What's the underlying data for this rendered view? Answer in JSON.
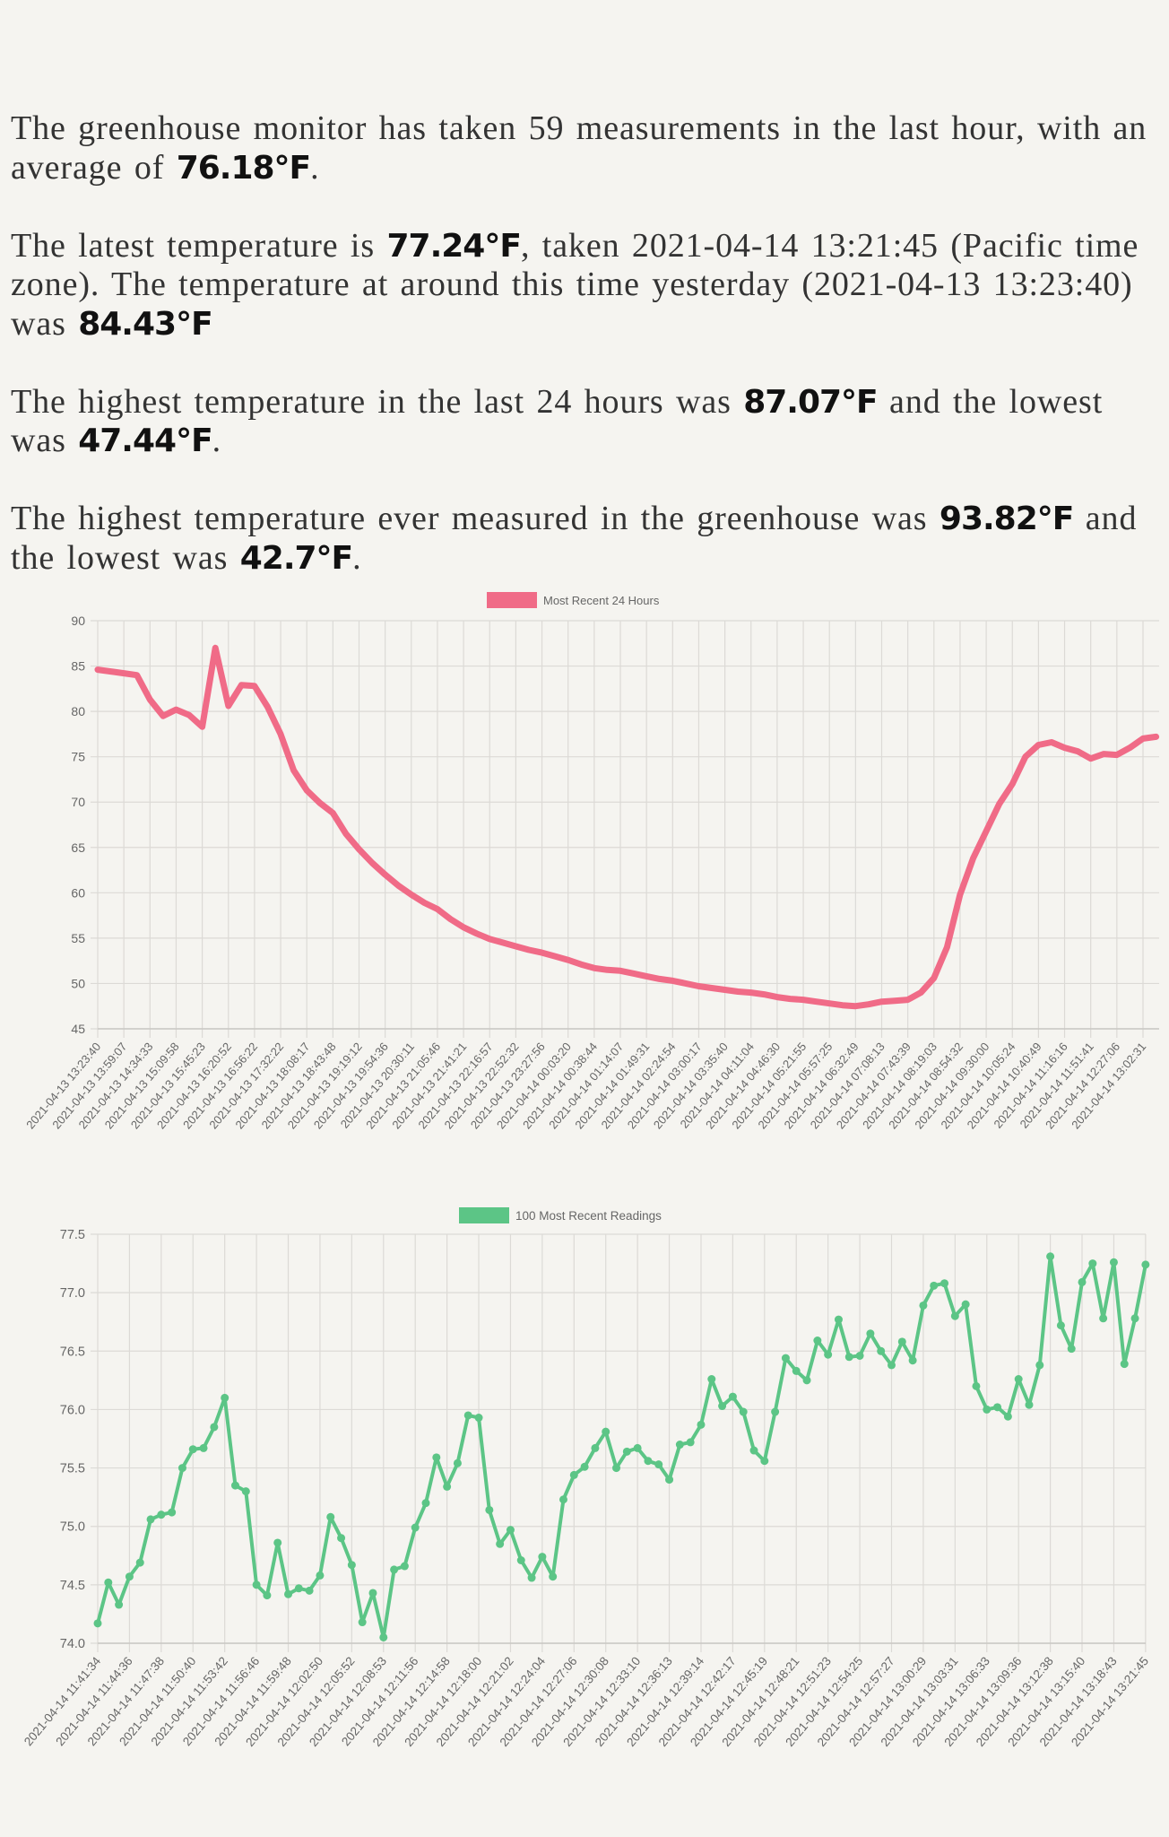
{
  "summary": {
    "p1": {
      "t1": "The greenhouse monitor has taken 59 measurements in the last hour, with an average of ",
      "avg": "76.18°F",
      "t2": "."
    },
    "p2": {
      "t1": "The latest temperature is ",
      "latest": "77.24°F",
      "t2": ", taken 2021-04-14 13:21:45 (Pacific time zone). The temperature at around this time yesterday (2021-04-13 13:23:40) was ",
      "yesterday": "84.43°F",
      "t3": ""
    },
    "p3": {
      "t1": "The highest temperature in the last 24 hours was ",
      "high": "87.07°F",
      "t2": " and the lowest was ",
      "low": "47.44°F",
      "t3": "."
    },
    "p4": {
      "t1": "The highest temperature ever measured in the greenhouse was ",
      "high": "93.82°F",
      "t2": " and the lowest was ",
      "low": "42.7°F",
      "t3": "."
    }
  },
  "chart_data": [
    {
      "type": "line",
      "series": [
        {
          "name": "Most Recent 24 Hours",
          "color": "#f06b87",
          "values": [
            84.6,
            84.4,
            84.2,
            84.0,
            81.3,
            79.5,
            80.2,
            79.6,
            78.3,
            87.0,
            80.6,
            82.9,
            82.8,
            80.5,
            77.5,
            73.5,
            71.3,
            69.9,
            68.8,
            66.5,
            64.8,
            63.3,
            62.0,
            60.8,
            59.8,
            58.9,
            58.2,
            57.1,
            56.2,
            55.5,
            54.9,
            54.5,
            54.1,
            53.7,
            53.4,
            53.0,
            52.6,
            52.1,
            51.7,
            51.5,
            51.4,
            51.1,
            50.8,
            50.5,
            50.3,
            50.0,
            49.7,
            49.5,
            49.3,
            49.1,
            49.0,
            48.8,
            48.5,
            48.3,
            48.2,
            48.0,
            47.8,
            47.6,
            47.5,
            47.7,
            48.0,
            48.1,
            48.2,
            49.0,
            50.6,
            54.0,
            59.8,
            63.8,
            66.8,
            69.8,
            72.0,
            75.0,
            76.3,
            76.6,
            76.0,
            75.6,
            74.8,
            75.3,
            75.2,
            76.0,
            77.0,
            77.2
          ]
        }
      ],
      "x_tick_labels": [
        "2021-04-13 13:23:40",
        "2021-04-13 13:59:07",
        "2021-04-13 14:34:33",
        "2021-04-13 15:09:58",
        "2021-04-13 15:45:23",
        "2021-04-13 16:20:52",
        "2021-04-13 16:56:22",
        "2021-04-13 17:32:22",
        "2021-04-13 18:08:17",
        "2021-04-13 18:43:48",
        "2021-04-13 19:19:12",
        "2021-04-13 19:54:36",
        "2021-04-13 20:30:11",
        "2021-04-13 21:05:46",
        "2021-04-13 21:41:21",
        "2021-04-13 22:16:57",
        "2021-04-13 22:52:32",
        "2021-04-13 23:27:56",
        "2021-04-14 00:03:20",
        "2021-04-14 00:38:44",
        "2021-04-14 01:14:07",
        "2021-04-14 01:49:31",
        "2021-04-14 02:24:54",
        "2021-04-14 03:00:17",
        "2021-04-14 03:35:40",
        "2021-04-14 04:11:04",
        "2021-04-14 04:46:30",
        "2021-04-14 05:21:55",
        "2021-04-14 05:57:25",
        "2021-04-14 06:32:49",
        "2021-04-14 07:08:13",
        "2021-04-14 07:43:39",
        "2021-04-14 08:19:03",
        "2021-04-14 08:54:32",
        "2021-04-14 09:30:00",
        "2021-04-14 10:05:24",
        "2021-04-14 10:40:49",
        "2021-04-14 11:16:16",
        "2021-04-14 11:51:41",
        "2021-04-14 12:27:06",
        "2021-04-14 13:02:31"
      ],
      "points_per_tick": 2,
      "ylim": [
        45,
        90
      ],
      "y_ticks": [
        "90",
        "85",
        "80",
        "75",
        "70",
        "65",
        "60",
        "55",
        "50",
        "45"
      ],
      "y_tick_values": [
        90,
        85,
        80,
        75,
        70,
        65,
        60,
        55,
        50,
        45
      ],
      "grid": true,
      "legend": "top",
      "markers": false
    },
    {
      "type": "line",
      "series": [
        {
          "name": "100 Most Recent Readings",
          "color": "#5cc586",
          "values": [
            74.17,
            74.52,
            74.33,
            74.57,
            74.69,
            75.06,
            75.1,
            75.12,
            75.5,
            75.66,
            75.67,
            75.85,
            76.1,
            75.35,
            75.3,
            74.5,
            74.41,
            74.86,
            74.42,
            74.47,
            74.45,
            74.58,
            75.08,
            74.9,
            74.67,
            74.18,
            74.43,
            74.05,
            74.63,
            74.66,
            74.99,
            75.2,
            75.59,
            75.34,
            75.54,
            75.95,
            75.93,
            75.14,
            74.85,
            74.97,
            74.71,
            74.56,
            74.74,
            74.57,
            75.23,
            75.44,
            75.51,
            75.67,
            75.81,
            75.5,
            75.64,
            75.67,
            75.56,
            75.53,
            75.4,
            75.7,
            75.72,
            75.87,
            76.26,
            76.03,
            76.11,
            75.98,
            75.65,
            75.56,
            75.98,
            76.44,
            76.33,
            76.25,
            76.59,
            76.47,
            76.77,
            76.45,
            76.46,
            76.65,
            76.5,
            76.38,
            76.58,
            76.42,
            76.89,
            77.06,
            77.08,
            76.8,
            76.9,
            76.2,
            76.0,
            76.02,
            75.94,
            76.26,
            76.04,
            76.38,
            77.31,
            76.72,
            76.52,
            77.09,
            77.25,
            76.78,
            77.26,
            76.39,
            76.78,
            77.24
          ]
        }
      ],
      "x_tick_labels": [
        "2021-04-14 11:41:34",
        "2021-04-14 11:44:36",
        "2021-04-14 11:47:38",
        "2021-04-14 11:50:40",
        "2021-04-14 11:53:42",
        "2021-04-14 11:56:46",
        "2021-04-14 11:59:48",
        "2021-04-14 12:02:50",
        "2021-04-14 12:05:52",
        "2021-04-14 12:08:53",
        "2021-04-14 12:11:56",
        "2021-04-14 12:14:58",
        "2021-04-14 12:18:00",
        "2021-04-14 12:21:02",
        "2021-04-14 12:24:04",
        "2021-04-14 12:27:06",
        "2021-04-14 12:30:08",
        "2021-04-14 12:33:10",
        "2021-04-14 12:36:13",
        "2021-04-14 12:39:14",
        "2021-04-14 12:42:17",
        "2021-04-14 12:45:19",
        "2021-04-14 12:48:21",
        "2021-04-14 12:51:23",
        "2021-04-14 12:54:25",
        "2021-04-14 12:57:27",
        "2021-04-14 13:00:29",
        "2021-04-14 13:03:31",
        "2021-04-14 13:06:33",
        "2021-04-14 13:09:36",
        "2021-04-14 13:12:38",
        "2021-04-14 13:15:40",
        "2021-04-14 13:18:43",
        "2021-04-14 13:21:45"
      ],
      "points_per_tick": 3,
      "ylim": [
        74.0,
        77.5
      ],
      "y_ticks": [
        "77.5",
        "77.0",
        "76.5",
        "76.0",
        "75.5",
        "75.0",
        "74.5",
        "74.0"
      ],
      "y_tick_values": [
        77.5,
        77.0,
        76.5,
        76.0,
        75.5,
        75.0,
        74.5,
        74.0
      ],
      "grid": true,
      "legend": "top",
      "markers": true
    }
  ]
}
